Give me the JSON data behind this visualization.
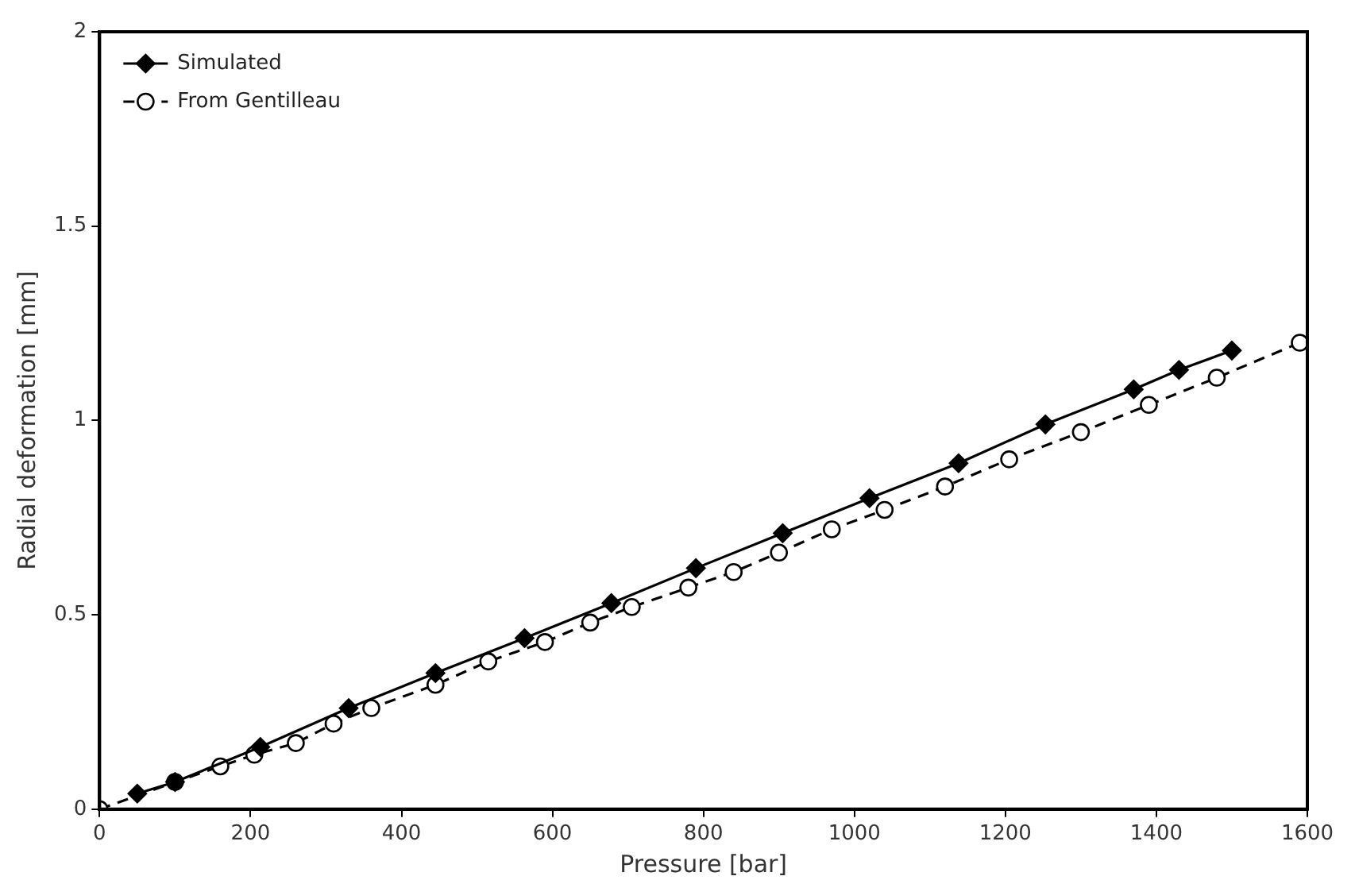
{
  "chart_data": {
    "type": "line",
    "xlabel": "Pressure [bar]",
    "ylabel": "Radial deformation [mm]",
    "xlim": [
      0,
      1600
    ],
    "xticks": [
      0,
      200,
      400,
      600,
      800,
      1000,
      1200,
      1400,
      1600
    ],
    "ylim": [
      0,
      2
    ],
    "yticks": [
      0,
      0.5,
      1,
      1.5,
      2
    ],
    "grid": false,
    "legend": "top left",
    "series": [
      {
        "name": "Simulated",
        "color": "#000000",
        "marker": "diamond",
        "line_style": "solid",
        "x": [
          50,
          100,
          213,
          330,
          445,
          563,
          678,
          790,
          905,
          1020,
          1138,
          1253,
          1370,
          1430,
          1500
        ],
        "values": [
          0.04,
          0.07,
          0.16,
          0.26,
          0.35,
          0.44,
          0.53,
          0.62,
          0.71,
          0.8,
          0.89,
          0.99,
          1.08,
          1.13,
          1.18
        ]
      },
      {
        "name": "From Gentilleau",
        "color": "#000000",
        "marker": "circle",
        "line_style": "dashed",
        "x": [
          0,
          100,
          160,
          205,
          260,
          310,
          360,
          445,
          515,
          590,
          650,
          705,
          780,
          840,
          900,
          970,
          1040,
          1120,
          1205,
          1300,
          1390,
          1480,
          1590
        ],
        "values": [
          0,
          0.07,
          0.11,
          0.14,
          0.17,
          0.22,
          0.26,
          0.32,
          0.38,
          0.43,
          0.48,
          0.52,
          0.57,
          0.61,
          0.66,
          0.72,
          0.77,
          0.83,
          0.9,
          0.97,
          1.04,
          1.11,
          1.2
        ]
      }
    ]
  }
}
